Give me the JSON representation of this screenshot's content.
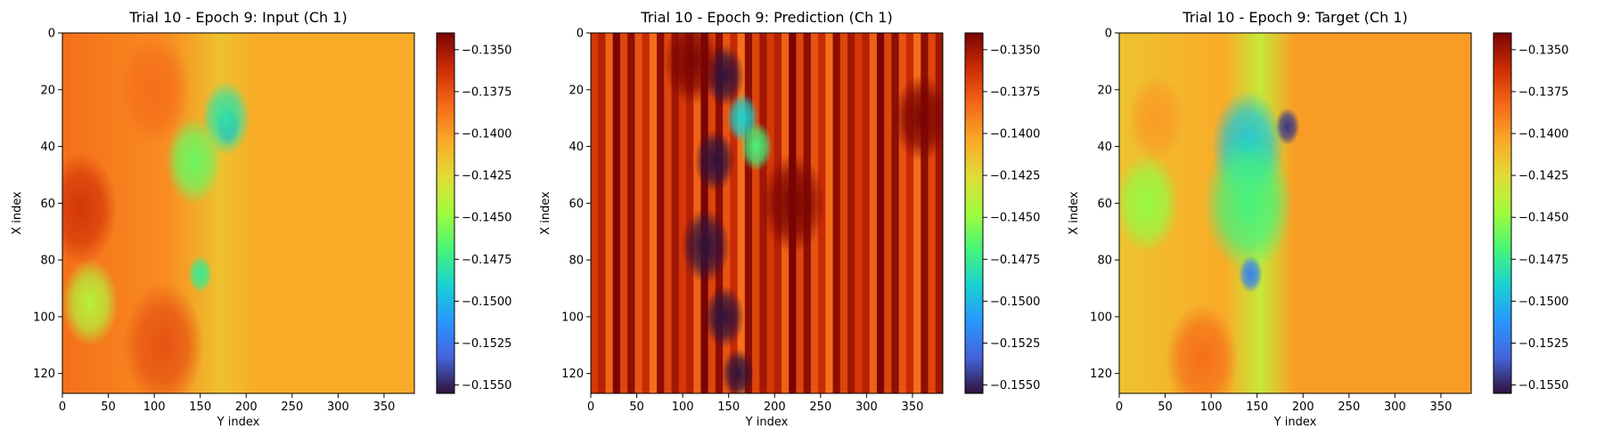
{
  "chart_data": [
    {
      "type": "heatmap",
      "title": "Trial 10 - Epoch 9: Input (Ch 1)",
      "xlabel": "Y index",
      "ylabel": "X index",
      "xlim": [
        0,
        383
      ],
      "ylim": [
        127,
        0
      ],
      "xticks": [
        "0",
        "50",
        "100",
        "150",
        "200",
        "250",
        "300",
        "350"
      ],
      "yticks": [
        "0",
        "20",
        "40",
        "60",
        "80",
        "100",
        "120"
      ],
      "colorbar": {
        "min": -0.1555,
        "max": -0.134,
        "ticks": [
          "−0.1350",
          "−0.1375",
          "−0.1400",
          "−0.1425",
          "−0.1450",
          "−0.1475",
          "−0.1500",
          "−0.1525",
          "−0.1550"
        ],
        "colormap": "turbo"
      },
      "blobs": [
        {
          "x": 180,
          "y": 33,
          "r": 6,
          "value": -0.1535
        },
        {
          "x": 178,
          "y": 30,
          "r": 12,
          "value": -0.148
        },
        {
          "x": 143,
          "y": 45,
          "r": 14,
          "value": -0.146
        },
        {
          "x": 150,
          "y": 85,
          "r": 6,
          "value": -0.1475
        },
        {
          "x": 20,
          "y": 62,
          "r": 18,
          "value": -0.1365
        },
        {
          "x": 110,
          "y": 110,
          "r": 20,
          "value": -0.1375
        },
        {
          "x": 30,
          "y": 95,
          "r": 14,
          "value": -0.144
        },
        {
          "x": 100,
          "y": 20,
          "r": 18,
          "value": -0.1385
        }
      ]
    },
    {
      "type": "heatmap",
      "title": "Trial 10 - Epoch 9: Prediction (Ch 1)",
      "xlabel": "Y index",
      "ylabel": "X index",
      "xlim": [
        0,
        383
      ],
      "ylim": [
        127,
        0
      ],
      "xticks": [
        "0",
        "50",
        "100",
        "150",
        "200",
        "250",
        "300",
        "350"
      ],
      "yticks": [
        "0",
        "20",
        "40",
        "60",
        "80",
        "100",
        "120"
      ],
      "colorbar": {
        "min": -0.1555,
        "max": -0.134,
        "ticks": [
          "−0.1350",
          "−0.1375",
          "−0.1400",
          "−0.1425",
          "−0.1450",
          "−0.1475",
          "−0.1500",
          "−0.1525",
          "−0.1550"
        ],
        "colormap": "turbo"
      },
      "blobs": [
        {
          "x": 145,
          "y": 15,
          "r": 10,
          "value": -0.1555
        },
        {
          "x": 135,
          "y": 45,
          "r": 10,
          "value": -0.1555
        },
        {
          "x": 125,
          "y": 75,
          "r": 12,
          "value": -0.1555
        },
        {
          "x": 145,
          "y": 100,
          "r": 10,
          "value": -0.1555
        },
        {
          "x": 160,
          "y": 120,
          "r": 8,
          "value": -0.1555
        },
        {
          "x": 165,
          "y": 30,
          "r": 8,
          "value": -0.149
        },
        {
          "x": 180,
          "y": 40,
          "r": 8,
          "value": -0.147
        },
        {
          "x": 110,
          "y": 10,
          "r": 14,
          "value": -0.134
        },
        {
          "x": 220,
          "y": 60,
          "r": 16,
          "value": -0.134
        },
        {
          "x": 360,
          "y": 30,
          "r": 14,
          "value": -0.134
        }
      ]
    },
    {
      "type": "heatmap",
      "title": "Trial 10 - Epoch 9: Target (Ch 1)",
      "xlabel": "Y index",
      "ylabel": "X index",
      "xlim": [
        0,
        383
      ],
      "ylim": [
        127,
        0
      ],
      "xticks": [
        "0",
        "50",
        "100",
        "150",
        "200",
        "250",
        "300",
        "350"
      ],
      "yticks": [
        "0",
        "20",
        "40",
        "60",
        "80",
        "100",
        "120"
      ],
      "colorbar": {
        "min": -0.1555,
        "max": -0.134,
        "ticks": [
          "−0.1350",
          "−0.1375",
          "−0.1400",
          "−0.1425",
          "−0.1450",
          "−0.1475",
          "−0.1500",
          "−0.1525",
          "−0.1550"
        ],
        "colormap": "turbo"
      },
      "blobs": [
        {
          "x": 183,
          "y": 33,
          "r": 6,
          "value": -0.1545
        },
        {
          "x": 140,
          "y": 40,
          "r": 18,
          "value": -0.1495
        },
        {
          "x": 140,
          "y": 60,
          "r": 22,
          "value": -0.147
        },
        {
          "x": 143,
          "y": 85,
          "r": 6,
          "value": -0.152
        },
        {
          "x": 30,
          "y": 60,
          "r": 16,
          "value": -0.145
        },
        {
          "x": 90,
          "y": 115,
          "r": 18,
          "value": -0.1385
        },
        {
          "x": 40,
          "y": 30,
          "r": 14,
          "value": -0.14
        }
      ]
    }
  ]
}
